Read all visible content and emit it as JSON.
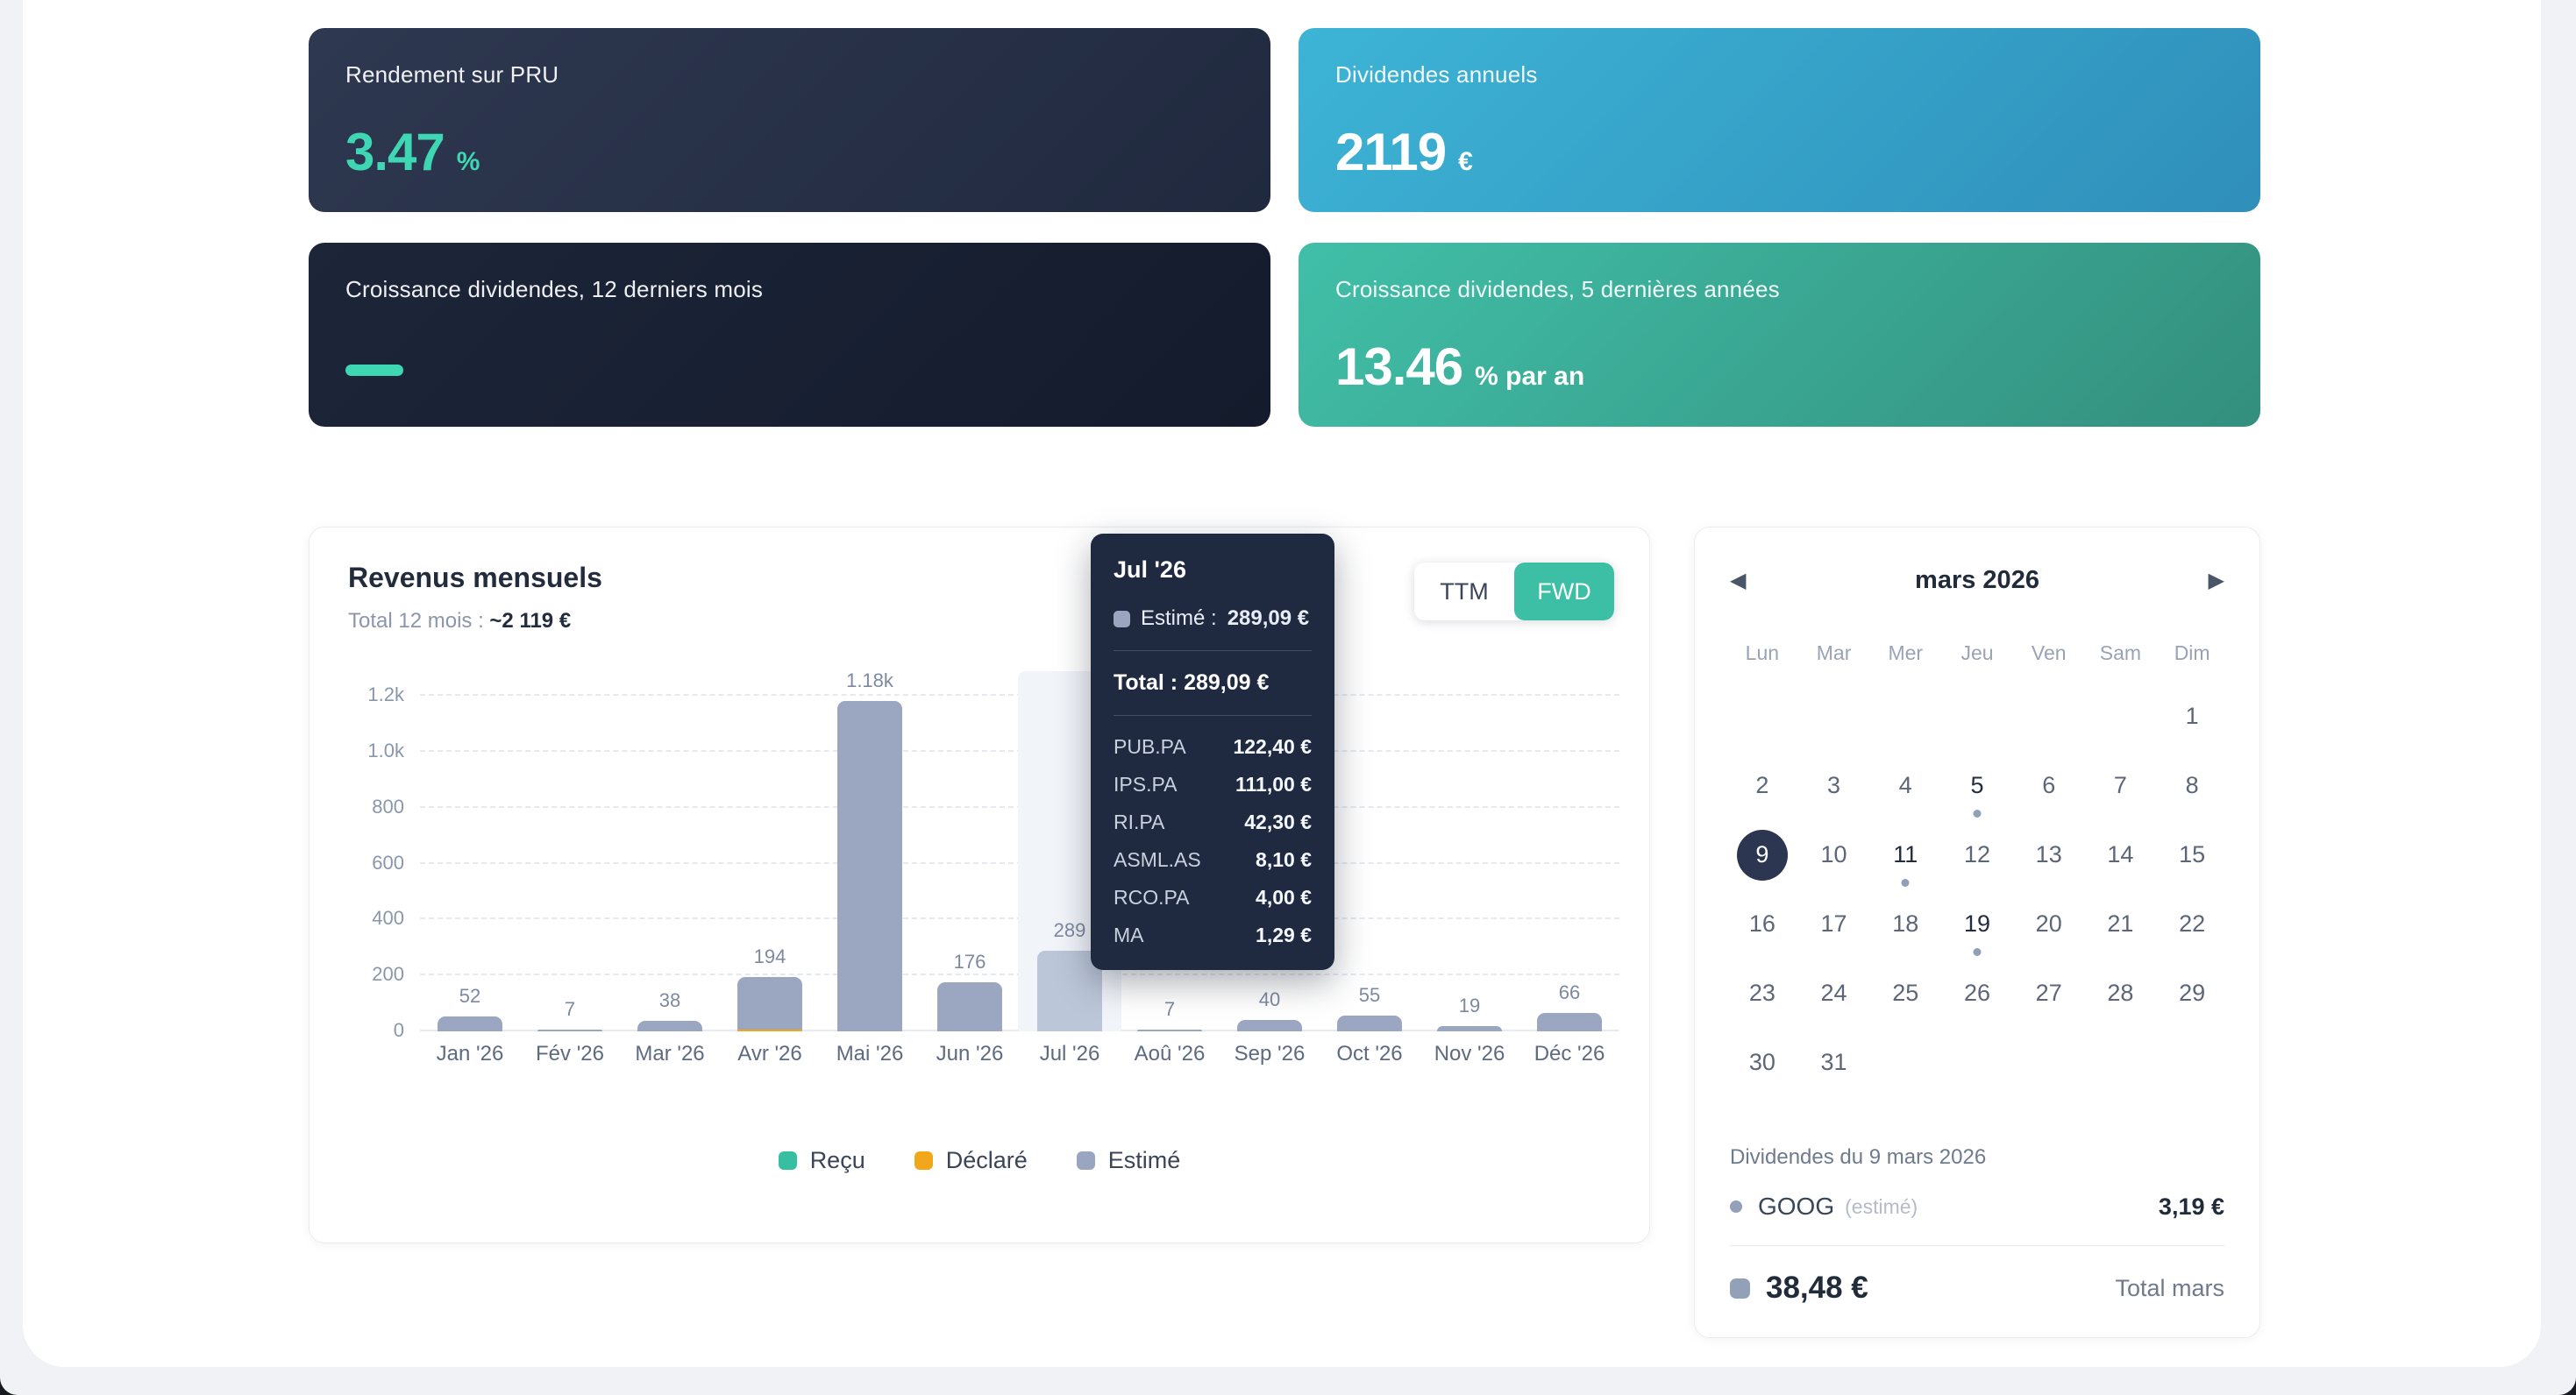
{
  "stats": {
    "cards": [
      {
        "label": "Rendement sur PRU",
        "value": "3.47",
        "suffix": "%",
        "accent": "#3fd6b4"
      },
      {
        "label": "Dividendes annuels",
        "value": "2119",
        "suffix": "€"
      },
      {
        "label": "Croissance dividendes, 12 derniers mois",
        "value": "",
        "dash": true,
        "dash_color": "#3fd6b4"
      },
      {
        "label": "Croissance dividendes, 5 dernières années",
        "value": "13.46",
        "suffix": "% par an"
      }
    ]
  },
  "chart_data": {
    "type": "bar",
    "title": "Revenus mensuels",
    "subtitle_prefix": "Total 12 mois : ",
    "subtitle_value": "~2 119 €",
    "toggle": {
      "options": [
        "TTM",
        "FWD"
      ],
      "selected": "FWD"
    },
    "categories": [
      "Jan '26",
      "Fév '26",
      "Mar '26",
      "Avr '26",
      "Mai '26",
      "Jun '26",
      "Jul '26",
      "Aoû '26",
      "Sep '26",
      "Oct '26",
      "Nov '26",
      "Déc '26"
    ],
    "values": [
      52,
      7,
      38,
      194,
      1180,
      176,
      289,
      7,
      40,
      55,
      19,
      66
    ],
    "bar_labels": [
      "52",
      "7",
      "38",
      "194",
      "1.18k",
      "176",
      "289",
      "7",
      "40",
      "55",
      "19",
      "66"
    ],
    "declared_values": [
      0,
      0,
      0,
      5,
      0,
      0,
      0,
      0,
      0,
      0,
      0,
      0
    ],
    "highlighted_category": "Jul '26",
    "ylim": [
      0,
      1200
    ],
    "yticks": [
      "1.2k",
      "1.0k",
      "800",
      "600",
      "400",
      "200",
      "0"
    ],
    "ytick_values": [
      1200,
      1000,
      800,
      600,
      400,
      200,
      0
    ],
    "grid": "horizontal-dashed",
    "legend_position": "bottom",
    "legend": [
      {
        "label": "Reçu",
        "color": "#36bfa0"
      },
      {
        "label": "Déclaré",
        "color": "#f2a71b"
      },
      {
        "label": "Estimé",
        "color": "#9aa6bf"
      }
    ],
    "bar_color": "#9ba7c0",
    "highlighted_bar_color": "#bcc6d9"
  },
  "tooltip": {
    "month": "Jul '26",
    "series_label": "Estimé : ",
    "series_value": "289,09 €",
    "total_label": "Total : ",
    "total_value": "289,09 €",
    "holdings": [
      {
        "ticker": "PUB.PA",
        "amount": "122,40 €"
      },
      {
        "ticker": "IPS.PA",
        "amount": "111,00 €"
      },
      {
        "ticker": "RI.PA",
        "amount": "42,30 €"
      },
      {
        "ticker": "ASML.AS",
        "amount": "8,10 €"
      },
      {
        "ticker": "RCO.PA",
        "amount": "4,00 €"
      },
      {
        "ticker": "MA",
        "amount": "1,29 €"
      }
    ]
  },
  "calendar": {
    "month_label": "mars 2026",
    "prev_icon": "◀",
    "next_icon": "▶",
    "weekdays": [
      "Lun",
      "Mar",
      "Mer",
      "Jeu",
      "Ven",
      "Sam",
      "Dim"
    ],
    "weeks": [
      [
        null,
        null,
        null,
        null,
        null,
        null,
        1
      ],
      [
        2,
        3,
        4,
        5,
        6,
        7,
        8
      ],
      [
        9,
        10,
        11,
        12,
        13,
        14,
        15
      ],
      [
        16,
        17,
        18,
        19,
        20,
        21,
        22
      ],
      [
        23,
        24,
        25,
        26,
        27,
        28,
        29
      ],
      [
        30,
        31,
        null,
        null,
        null,
        null,
        null
      ]
    ],
    "selected_day": 9,
    "event_days": [
      5,
      11,
      19
    ]
  },
  "dividends": {
    "heading": "Dividendes du 9 mars 2026",
    "entries": [
      {
        "ticker": "GOOG",
        "note": "(estimé)",
        "amount": "3,19 €"
      }
    ],
    "total_amount": "38,48 €",
    "total_label": "Total mars"
  }
}
